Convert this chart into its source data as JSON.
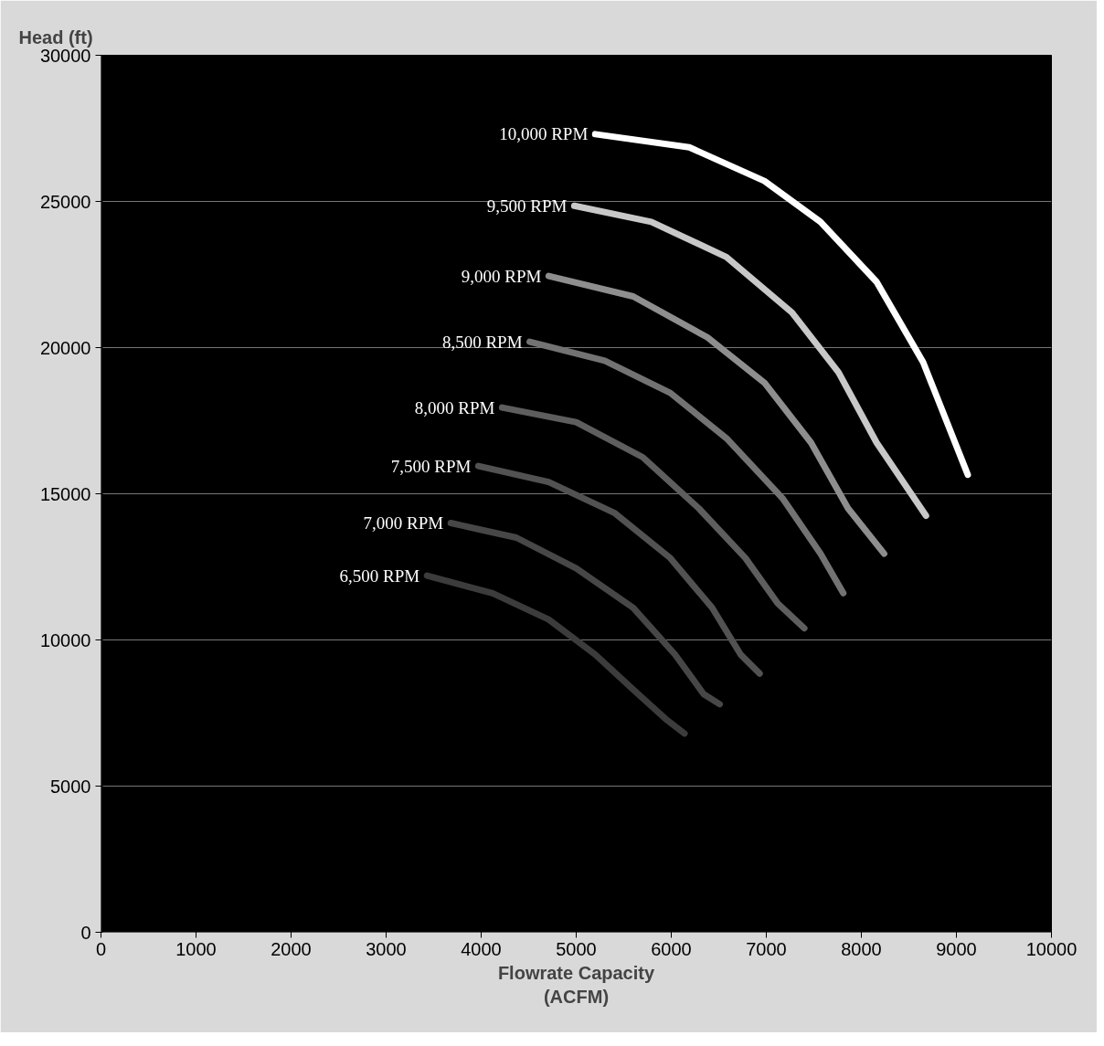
{
  "chart_data": {
    "type": "line",
    "xlabel": "Flowrate Capacity\n(ACFM)",
    "ylabel": "Head (ft)",
    "xlim": [
      0,
      10000
    ],
    "xticks": [
      0,
      1000,
      2000,
      3000,
      4000,
      5000,
      6000,
      7000,
      8000,
      9000,
      10000
    ],
    "ylim": [
      0,
      30000
    ],
    "yticks": [
      0,
      5000,
      10000,
      15000,
      20000,
      25000,
      30000
    ],
    "grid": "y",
    "marker": "none",
    "line_style": "solid",
    "series": [
      {
        "name": "6,500 RPM",
        "color": "#3c3c3c",
        "x": [
          3430,
          4120,
          4710,
          5200,
          5600,
          5940,
          6140
        ],
        "values": [
          12200,
          11600,
          10700,
          9500,
          8300,
          7300,
          6800
        ]
      },
      {
        "name": "7,000 RPM",
        "color": "#474747",
        "x": [
          3680,
          4370,
          5000,
          5600,
          6040,
          6340,
          6510
        ],
        "values": [
          14000,
          13500,
          12450,
          11100,
          9500,
          8150,
          7800
        ]
      },
      {
        "name": "7,500 RPM",
        "color": "#525252",
        "x": [
          3970,
          4710,
          5400,
          5990,
          6430,
          6730,
          6930
        ],
        "values": [
          15950,
          15400,
          14350,
          12800,
          11100,
          9500,
          8850
        ]
      },
      {
        "name": "8,000 RPM",
        "color": "#5e5e5e",
        "x": [
          4220,
          5000,
          5700,
          6290,
          6780,
          7120,
          7400
        ],
        "values": [
          17950,
          17450,
          16250,
          14500,
          12800,
          11250,
          10400
        ]
      },
      {
        "name": "8,500 RPM",
        "color": "#737373",
        "x": [
          4510,
          5300,
          5990,
          6580,
          7170,
          7570,
          7810
        ],
        "values": [
          20200,
          19550,
          18450,
          16900,
          14850,
          12950,
          11600
        ]
      },
      {
        "name": "9,000 RPM",
        "color": "#8e8e8e",
        "x": [
          4710,
          5600,
          6380,
          6980,
          7470,
          7860,
          8240
        ],
        "values": [
          22450,
          21750,
          20350,
          18800,
          16750,
          14500,
          12950
        ]
      },
      {
        "name": "9,500 RPM",
        "color": "#c8c8c8",
        "x": [
          4980,
          5790,
          6580,
          7270,
          7760,
          8160,
          8680
        ],
        "values": [
          24850,
          24300,
          23100,
          21200,
          19150,
          16750,
          14250
        ]
      },
      {
        "name": "10,000 RPM",
        "color": "#ffffff",
        "x": [
          5200,
          6190,
          6980,
          7570,
          8160,
          8650,
          9120
        ],
        "values": [
          27300,
          26850,
          25700,
          24300,
          22250,
          19500,
          15650
        ]
      }
    ]
  }
}
